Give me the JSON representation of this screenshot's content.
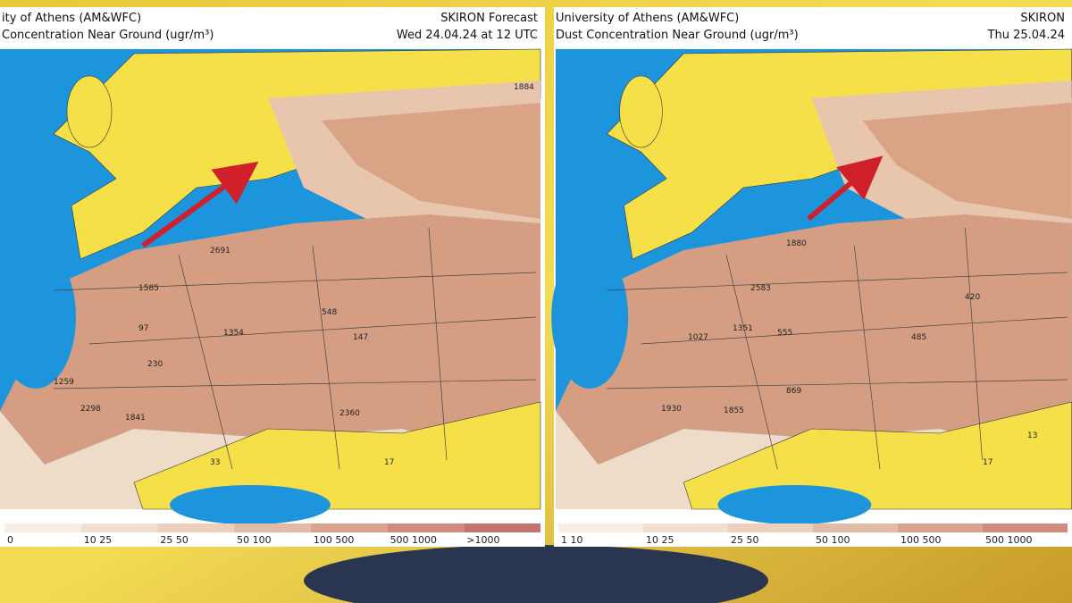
{
  "panels": [
    {
      "header": {
        "left_lines": [
          "ity of Athens (AM&WFC)",
          "Concentration Near Ground (ugr/m³)"
        ],
        "right_lines": [
          "SKIRON Forecast",
          "Wed 24.04.24 at 12 UTC"
        ]
      },
      "legend": [
        "0",
        "10 25",
        "25 50",
        "50 100",
        "100 500",
        "500 1000",
        ">1000"
      ],
      "map_labels": [
        "1884",
        "2691",
        "1585",
        "1354",
        "230",
        "97",
        "548",
        "147",
        "1259",
        "2298",
        "1841",
        "2360",
        "33",
        "17"
      ]
    },
    {
      "header": {
        "left_lines": [
          "University of Athens (AM&WFC)",
          "Dust Concentration Near Ground (ugr/m³)"
        ],
        "right_lines": [
          "SKIRON",
          "Thu 25.04.24"
        ]
      },
      "legend": [
        "1 10",
        "10 25",
        "25 50",
        "50 100",
        "100 500",
        "500 1000"
      ],
      "map_labels": [
        "1880",
        "2583",
        "1351",
        "555",
        "1027",
        "485",
        "420",
        "869",
        "1930",
        "1855",
        "17",
        "13"
      ]
    }
  ]
}
